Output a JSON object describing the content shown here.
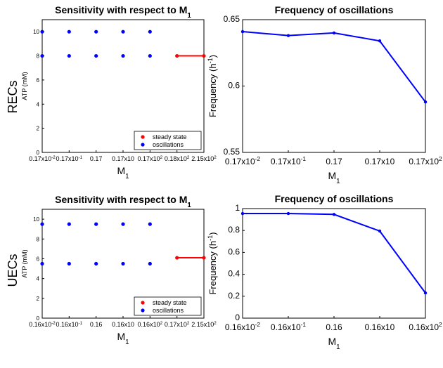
{
  "row_labels": [
    "RECs",
    "UECs"
  ],
  "chart_data": [
    {
      "type": "scatter",
      "title": "Sensitivity with respect to M",
      "title_sub": "1",
      "xlabel": "M",
      "xlabel_sub": "1",
      "ylabel": "ATP (mM)",
      "row": "RECs",
      "categories": [
        "0.17x10",
        "0.17x10",
        "0.17",
        "0.17x10",
        "0.17x10",
        "0.18x10",
        "2.15x10"
      ],
      "category_exp": [
        "-2",
        "-1",
        "",
        "",
        "2",
        "2",
        "2"
      ],
      "ylim": [
        0,
        11
      ],
      "yticks": [
        0,
        2,
        4,
        6,
        8,
        10
      ],
      "series": [
        {
          "name": "steady state",
          "color": "#ff0000",
          "x": [
            5,
            6
          ],
          "y": [
            8,
            8
          ],
          "style": "line"
        },
        {
          "name": "oscillations",
          "color": "#0000ff",
          "x": [
            0,
            1,
            2,
            3,
            4
          ],
          "y": [
            10,
            10,
            10,
            10,
            10
          ],
          "style": "points"
        },
        {
          "name": "oscillations",
          "color": "#0000ff",
          "x": [
            0,
            1,
            2,
            3,
            4
          ],
          "y": [
            8,
            8,
            8,
            8,
            8
          ],
          "style": "points"
        }
      ],
      "legend": {
        "position": "bottom-right",
        "entries": [
          {
            "label": "steady state",
            "color": "#ff0000"
          },
          {
            "label": "oscillations",
            "color": "#0000ff"
          }
        ]
      }
    },
    {
      "type": "line",
      "title": "Frequency of oscillations",
      "xlabel": "M",
      "xlabel_sub": "1",
      "ylabel": "Frequency (h",
      "ylabel_sup": "-1",
      "ylabel_end": ")",
      "row": "RECs",
      "categories": [
        "0.17x10",
        "0.17x10",
        "0.17",
        "0.17x10",
        "0.17x10"
      ],
      "category_exp": [
        "-2",
        "-1",
        "",
        "",
        "2"
      ],
      "ylim": [
        0.55,
        0.65
      ],
      "yticks": [
        0.55,
        0.6,
        0.65
      ],
      "ytick_labels": [
        "0.55",
        "0.6",
        "0.65"
      ],
      "color": "#0000ff",
      "values": [
        0.641,
        0.638,
        0.64,
        0.634,
        0.588
      ]
    },
    {
      "type": "scatter",
      "title": "Sensitivity with respect to M",
      "title_sub": "1",
      "xlabel": "M",
      "xlabel_sub": "1",
      "ylabel": "ATP (mM)",
      "row": "UECs",
      "categories": [
        "0.16x10",
        "0.16x10",
        "0.16",
        "0.16x10",
        "0.16x10",
        "0.17x10",
        "2.15x10"
      ],
      "category_exp": [
        "-2",
        "-1",
        "",
        "",
        "2",
        "2",
        "2"
      ],
      "ylim": [
        0,
        11
      ],
      "yticks": [
        0,
        2,
        4,
        6,
        8,
        10
      ],
      "series": [
        {
          "name": "steady state",
          "color": "#ff0000",
          "x": [
            5,
            6
          ],
          "y": [
            6.1,
            6.1
          ],
          "style": "line"
        },
        {
          "name": "oscillations",
          "color": "#0000ff",
          "x": [
            0,
            1,
            2,
            3,
            4
          ],
          "y": [
            9.5,
            9.5,
            9.5,
            9.5,
            9.5
          ],
          "style": "points"
        },
        {
          "name": "oscillations",
          "color": "#0000ff",
          "x": [
            0,
            1,
            2,
            3,
            4
          ],
          "y": [
            5.5,
            5.5,
            5.5,
            5.5,
            5.5
          ],
          "style": "points"
        }
      ],
      "legend": {
        "position": "bottom-right",
        "entries": [
          {
            "label": "steady state",
            "color": "#ff0000"
          },
          {
            "label": "oscillations",
            "color": "#0000ff"
          }
        ]
      }
    },
    {
      "type": "line",
      "title": "Frequency of oscillations",
      "xlabel": "M",
      "xlabel_sub": "1",
      "ylabel": "Frequency (h",
      "ylabel_sup": "-1",
      "ylabel_end": ")",
      "row": "UECs",
      "categories": [
        "0.16x10",
        "0.16x10",
        "0.16",
        "0.16x10",
        "0.16x10"
      ],
      "category_exp": [
        "-2",
        "-1",
        "",
        "",
        "2"
      ],
      "ylim": [
        0,
        1
      ],
      "yticks": [
        0,
        0.2,
        0.4,
        0.6,
        0.8,
        1
      ],
      "ytick_labels": [
        "0",
        "0.2",
        "0.4",
        "0.6",
        "0.8",
        "1"
      ],
      "color": "#0000ff",
      "values": [
        0.955,
        0.955,
        0.947,
        0.795,
        0.23
      ]
    }
  ]
}
